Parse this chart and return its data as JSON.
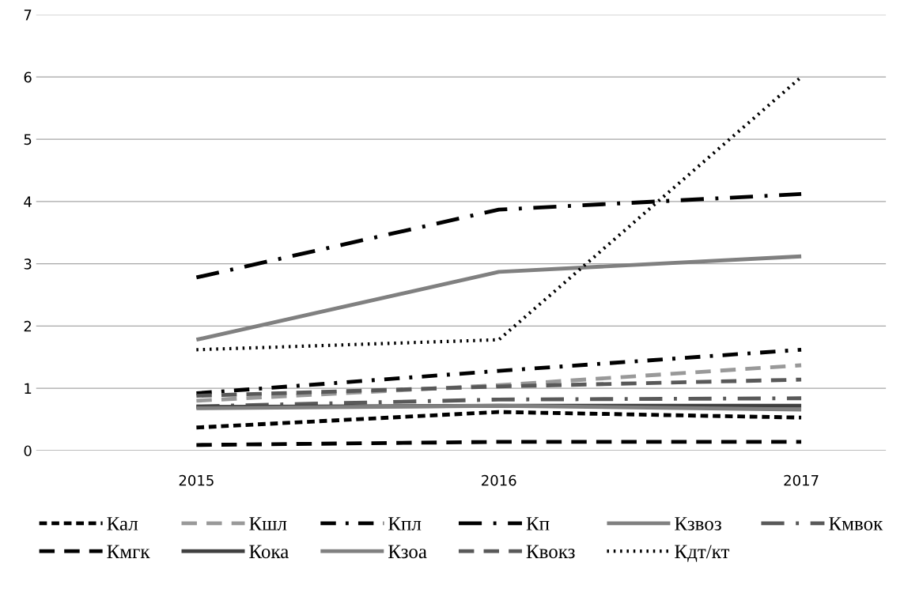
{
  "chart_data": {
    "type": "line",
    "categories": [
      "2015",
      "2016",
      "2017"
    ],
    "ylim": [
      0,
      7
    ],
    "yticks": [
      0,
      1,
      2,
      3,
      4,
      5,
      6,
      7
    ],
    "grid": "y",
    "legend": "bottom",
    "series": [
      {
        "name": "Кал",
        "color": "#000000",
        "line_style": "dashed",
        "values": [
          0.37,
          0.62,
          0.53
        ]
      },
      {
        "name": "Кшл",
        "color": "#999999",
        "line_style": "longdashed",
        "values": [
          0.8,
          1.05,
          1.37
        ]
      },
      {
        "name": "Кпл",
        "color": "#000000",
        "line_style": "dashdot",
        "values": [
          0.92,
          1.28,
          1.62
        ]
      },
      {
        "name": "Кп",
        "color": "#000000",
        "line_style": "longdashdot",
        "values": [
          2.78,
          3.87,
          4.12
        ]
      },
      {
        "name": "Кзвоз",
        "color": "#808080",
        "line_style": "solid",
        "values": [
          1.78,
          2.87,
          3.12
        ]
      },
      {
        "name": "Кмвок",
        "color": "#595959",
        "line_style": "longdashdot",
        "values": [
          0.71,
          0.82,
          0.84
        ]
      },
      {
        "name": "Кмгк",
        "color": "#000000",
        "line_style": "longdashed",
        "values": [
          0.09,
          0.14,
          0.14
        ]
      },
      {
        "name": "Кока",
        "color": "#404040",
        "line_style": "solid",
        "values": [
          0.7,
          0.72,
          0.72
        ]
      },
      {
        "name": "Кзоа",
        "color": "#808080",
        "line_style": "solid",
        "values": [
          0.68,
          0.72,
          0.66
        ]
      },
      {
        "name": "Квокз",
        "color": "#595959",
        "line_style": "longdashed",
        "values": [
          0.88,
          1.03,
          1.14
        ]
      },
      {
        "name": "Кдт/кт",
        "color": "#000000",
        "line_style": "dotted",
        "values": [
          1.62,
          1.78,
          6.0
        ]
      }
    ]
  }
}
